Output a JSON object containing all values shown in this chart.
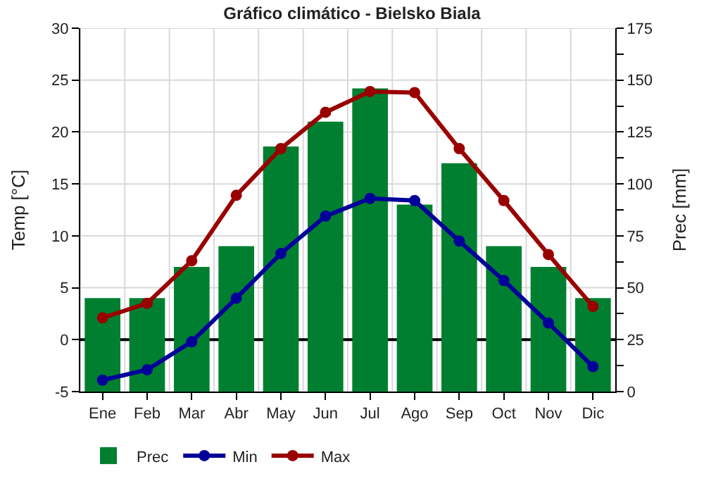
{
  "chart_data": {
    "type": "bar",
    "title": "Gráfico climático - Bielsko Biala",
    "ylabel": "Temp [°C]",
    "y2label": "Prec [mm]",
    "categories": [
      "Ene",
      "Feb",
      "Mar",
      "Abr",
      "May",
      "Jun",
      "Jul",
      "Ago",
      "Sep",
      "Oct",
      "Nov",
      "Dic"
    ],
    "series": [
      {
        "name": "Prec",
        "axis": "y2",
        "color": "#007f30",
        "values": [
          45,
          45,
          60,
          70,
          118,
          130,
          146,
          90,
          110,
          70,
          60,
          45
        ]
      },
      {
        "name": "Min",
        "type": "line",
        "axis": "y",
        "color": "#000099",
        "marker": "circle",
        "values": [
          -3.9,
          -2.9,
          -0.2,
          4.0,
          8.3,
          11.9,
          13.6,
          13.4,
          9.5,
          5.7,
          1.6,
          -2.6
        ]
      },
      {
        "name": "Max",
        "type": "line",
        "axis": "y",
        "color": "#990000",
        "marker": "circle",
        "values": [
          2.1,
          3.5,
          7.6,
          13.9,
          18.4,
          21.9,
          23.9,
          23.8,
          18.4,
          13.4,
          8.2,
          3.2
        ]
      }
    ],
    "ylim": [
      -5,
      30
    ],
    "yticks": [
      -5,
      0,
      5,
      10,
      15,
      20,
      25,
      30
    ],
    "y2lim": [
      0,
      175
    ],
    "y2ticks": [
      0,
      {
        "value": 12.5,
        "label": null
      },
      25,
      {
        "value": 37.5,
        "label": null
      },
      50,
      {
        "value": 62.5,
        "label": null
      },
      75,
      {
        "value": 87.5,
        "label": null
      },
      100,
      {
        "value": 112.5,
        "label": null
      },
      125,
      {
        "value": 137.5,
        "label": null
      },
      150,
      {
        "value": 162.5,
        "label": null
      },
      175
    ],
    "ref_lines": [
      {
        "axis": "y",
        "value": 0,
        "color": "#000000"
      }
    ],
    "grid": true,
    "legend": "bottom"
  }
}
